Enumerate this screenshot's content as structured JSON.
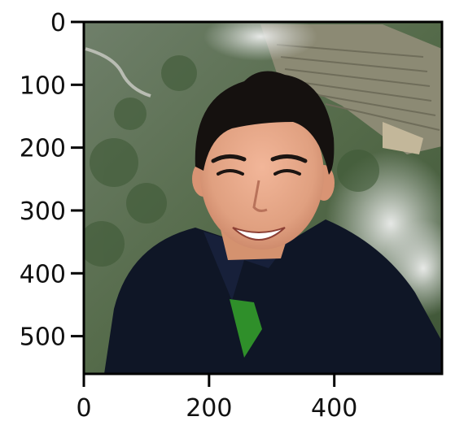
{
  "figure": {
    "x_axis": {
      "range": [
        0,
        572
      ],
      "ticks": [
        {
          "value": 0,
          "label": "0"
        },
        {
          "value": 200,
          "label": "200"
        },
        {
          "value": 400,
          "label": "400"
        }
      ]
    },
    "y_axis": {
      "range": [
        0,
        560
      ],
      "inverted": true,
      "ticks": [
        {
          "value": 0,
          "label": "0"
        },
        {
          "value": 100,
          "label": "100"
        },
        {
          "value": 200,
          "label": "200"
        },
        {
          "value": 300,
          "label": "300"
        },
        {
          "value": 400,
          "label": "400"
        },
        {
          "value": 500,
          "label": "500"
        }
      ]
    },
    "image": {
      "subject": "smiling young man with short black hair wearing a dark navy polo shirt",
      "background": "misty green mountain landscape with terraced ruins"
    },
    "colors": {
      "frame": "#000000",
      "shirt": "#0f1626",
      "green_accent": "#2f8f2a",
      "skin": "#e3a585",
      "hair": "#15110f",
      "mountain": "#566c4c",
      "mist": "#d6d9d7"
    }
  }
}
